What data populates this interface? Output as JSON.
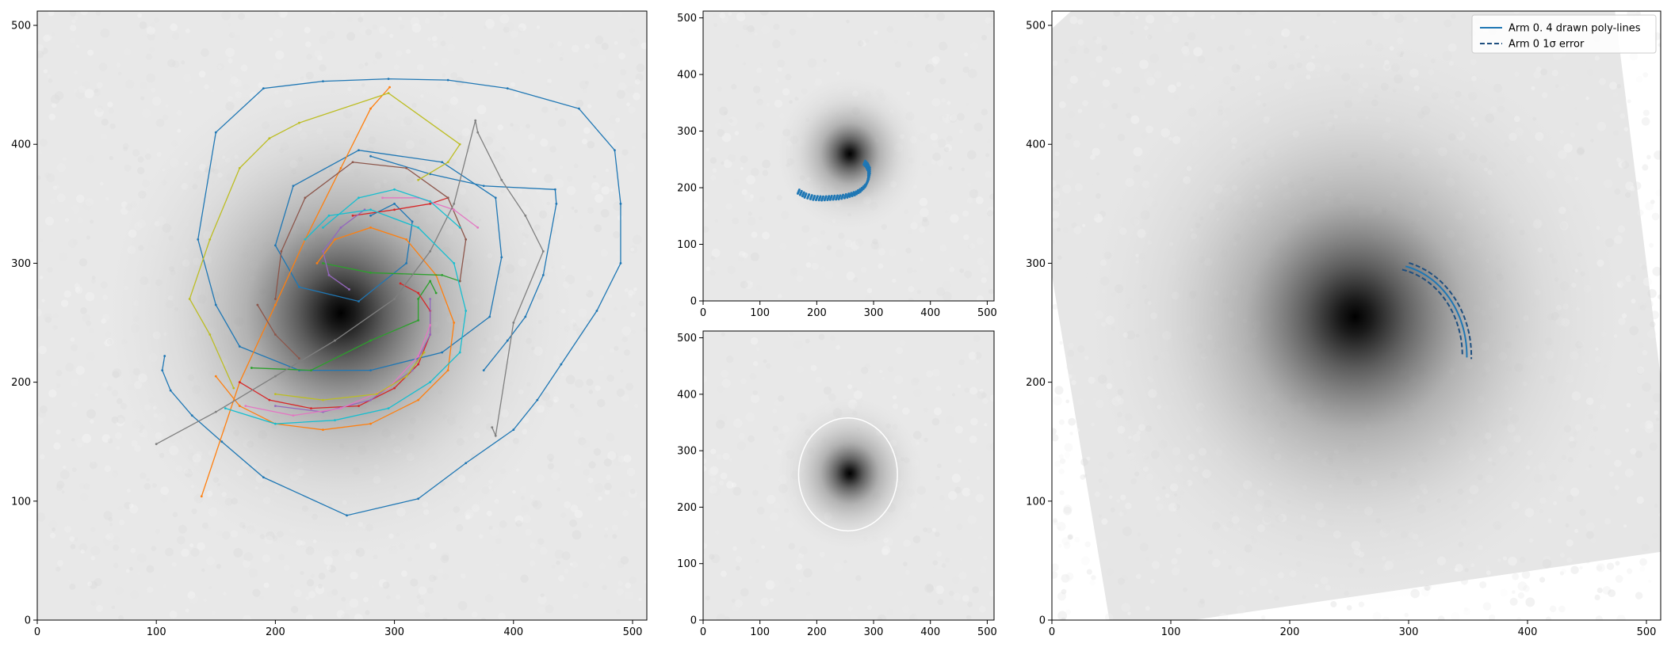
{
  "chart_data": [
    {
      "type": "scatter",
      "name": "drawn-arms-panel",
      "image": "galaxy (grayscale, sigmoid-stretched)",
      "xlim": [
        0,
        512
      ],
      "ylim": [
        0,
        512
      ],
      "xticks": [
        0,
        100,
        200,
        300,
        400,
        500
      ],
      "yticks": [
        0,
        100,
        200,
        300,
        400,
        500
      ],
      "grid": false,
      "galaxy_center": [
        255,
        258
      ],
      "series": [
        {
          "color": "#1f77b4",
          "points": [
            [
              107,
              222
            ],
            [
              105,
              210
            ],
            [
              112,
              193
            ],
            [
              130,
              172
            ],
            [
              155,
              150
            ],
            [
              190,
              120
            ],
            [
              260,
              88
            ],
            [
              320,
              102
            ],
            [
              360,
              132
            ],
            [
              400,
              160
            ],
            [
              420,
              185
            ],
            [
              440,
              215
            ],
            [
              470,
              260
            ],
            [
              490,
              300
            ],
            [
              490,
              350
            ],
            [
              485,
              395
            ],
            [
              455,
              430
            ],
            [
              395,
              447
            ],
            [
              345,
              454
            ],
            [
              295,
              455
            ],
            [
              240,
              453
            ],
            [
              190,
              447
            ],
            [
              150,
              410
            ],
            [
              135,
              320
            ],
            [
              150,
              265
            ],
            [
              170,
              230
            ],
            [
              220,
              210
            ],
            [
              280,
              210
            ],
            [
              340,
              225
            ],
            [
              380,
              255
            ],
            [
              390,
              305
            ],
            [
              385,
              355
            ],
            [
              340,
              385
            ],
            [
              270,
              395
            ],
            [
              215,
              365
            ],
            [
              200,
              315
            ],
            [
              220,
              280
            ],
            [
              270,
              268
            ],
            [
              310,
              300
            ],
            [
              315,
              335
            ],
            [
              300,
              350
            ],
            [
              280,
              340
            ]
          ]
        },
        {
          "color": "#1f77b4",
          "points": [
            [
              280,
              390
            ],
            [
              330,
              375
            ],
            [
              375,
              365
            ],
            [
              435,
              362
            ],
            [
              436,
              350
            ],
            [
              425,
              290
            ],
            [
              410,
              255
            ],
            [
              395,
              235
            ],
            [
              375,
              210
            ]
          ]
        },
        {
          "color": "#ff7f0e",
          "points": [
            [
              138,
              104
            ],
            [
              170,
              200
            ],
            [
              200,
              265
            ],
            [
              225,
              320
            ],
            [
              255,
              380
            ],
            [
              280,
              430
            ],
            [
              296,
              448
            ]
          ]
        },
        {
          "color": "#ff7f0e",
          "points": [
            [
              150,
              205
            ],
            [
              170,
              180
            ],
            [
              200,
              165
            ],
            [
              240,
              160
            ],
            [
              280,
              165
            ],
            [
              320,
              185
            ],
            [
              345,
              210
            ],
            [
              350,
              250
            ],
            [
              335,
              290
            ],
            [
              310,
              320
            ],
            [
              280,
              330
            ],
            [
              250,
              320
            ],
            [
              235,
              300
            ]
          ]
        },
        {
          "color": "#2ca02c",
          "points": [
            [
              180,
              212
            ],
            [
              230,
              210
            ],
            [
              280,
              235
            ],
            [
              320,
              252
            ],
            [
              320,
              270
            ],
            [
              330,
              285
            ],
            [
              335,
              275
            ]
          ]
        },
        {
          "color": "#2ca02c",
          "points": [
            [
              240,
              300
            ],
            [
              280,
              292
            ],
            [
              340,
              290
            ],
            [
              355,
              285
            ]
          ]
        },
        {
          "color": "#d62728",
          "points": [
            [
              170,
              200
            ],
            [
              195,
              185
            ],
            [
              230,
              178
            ],
            [
              270,
              180
            ],
            [
              300,
              195
            ],
            [
              320,
              215
            ],
            [
              330,
              240
            ],
            [
              330,
              260
            ],
            [
              320,
              275
            ],
            [
              305,
              283
            ]
          ]
        },
        {
          "color": "#d62728",
          "points": [
            [
              265,
              340
            ],
            [
              300,
              345
            ],
            [
              330,
              350
            ],
            [
              345,
              355
            ]
          ]
        },
        {
          "color": "#9467bd",
          "points": [
            [
              200,
              180
            ],
            [
              240,
              175
            ],
            [
              280,
              185
            ],
            [
              315,
              210
            ],
            [
              330,
              240
            ],
            [
              330,
              270
            ]
          ]
        },
        {
          "color": "#9467bd",
          "points": [
            [
              275,
              345
            ],
            [
              255,
              330
            ],
            [
              240,
              310
            ],
            [
              245,
              290
            ],
            [
              262,
              278
            ]
          ]
        },
        {
          "color": "#8c564b",
          "points": [
            [
              200,
              270
            ],
            [
              205,
              310
            ],
            [
              225,
              355
            ],
            [
              265,
              385
            ],
            [
              310,
              380
            ],
            [
              345,
              355
            ],
            [
              360,
              320
            ],
            [
              355,
              285
            ]
          ]
        },
        {
          "color": "#8c564b",
          "points": [
            [
              220,
              220
            ],
            [
              200,
              240
            ],
            [
              185,
              265
            ]
          ]
        },
        {
          "color": "#e377c2",
          "points": [
            [
              175,
              180
            ],
            [
              215,
              172
            ],
            [
              255,
              178
            ],
            [
              295,
              195
            ],
            [
              320,
              222
            ],
            [
              330,
              248
            ]
          ]
        },
        {
          "color": "#e377c2",
          "points": [
            [
              290,
              355
            ],
            [
              320,
              355
            ],
            [
              350,
              345
            ],
            [
              370,
              330
            ]
          ]
        },
        {
          "color": "#7f7f7f",
          "points": [
            [
              100,
              148
            ],
            [
              150,
              175
            ],
            [
              200,
              205
            ],
            [
              250,
              235
            ],
            [
              300,
              270
            ],
            [
              330,
              310
            ],
            [
              350,
              350
            ],
            [
              368,
              420
            ],
            [
              370,
              410
            ],
            [
              390,
              370
            ],
            [
              410,
              340
            ],
            [
              425,
              310
            ],
            [
              400,
              250
            ],
            [
              385,
              155
            ],
            [
              382,
              162
            ]
          ]
        },
        {
          "color": "#bcbd22",
          "points": [
            [
              165,
              195
            ],
            [
              145,
              240
            ],
            [
              128,
              270
            ],
            [
              145,
              320
            ],
            [
              170,
              380
            ],
            [
              195,
              405
            ],
            [
              220,
              418
            ],
            [
              295,
              443
            ],
            [
              355,
              400
            ],
            [
              345,
              385
            ],
            [
              320,
              370
            ]
          ]
        },
        {
          "color": "#bcbd22",
          "points": [
            [
              200,
              190
            ],
            [
              240,
              185
            ],
            [
              285,
              190
            ],
            [
              310,
              205
            ],
            [
              325,
              225
            ]
          ]
        },
        {
          "color": "#17becf",
          "points": [
            [
              158,
              178
            ],
            [
              200,
              165
            ],
            [
              250,
              168
            ],
            [
              295,
              178
            ],
            [
              330,
              200
            ],
            [
              355,
              225
            ],
            [
              360,
              260
            ],
            [
              350,
              300
            ],
            [
              320,
              330
            ],
            [
              280,
              345
            ],
            [
              245,
              340
            ],
            [
              225,
              320
            ]
          ]
        },
        {
          "color": "#17becf",
          "points": [
            [
              240,
              330
            ],
            [
              270,
              355
            ],
            [
              300,
              362
            ],
            [
              330,
              352
            ],
            [
              355,
              330
            ]
          ]
        }
      ]
    },
    {
      "type": "scatter",
      "name": "clustered-arm-points-panel",
      "xlim": [
        0,
        512
      ],
      "ylim": [
        0,
        512
      ],
      "xticks": [
        0,
        100,
        200,
        300,
        400,
        500
      ],
      "yticks": [
        0,
        100,
        200,
        300,
        400,
        500
      ],
      "grid": false,
      "galaxy_center": [
        258,
        260
      ],
      "series": [
        {
          "color": "#1f77b4",
          "points": [
            [
              168,
              193
            ],
            [
              180,
              186
            ],
            [
              195,
              182
            ],
            [
              210,
              181
            ],
            [
              225,
              182
            ],
            [
              240,
              183
            ],
            [
              255,
              186
            ],
            [
              268,
              190
            ],
            [
              278,
              196
            ],
            [
              286,
              204
            ],
            [
              290,
              212
            ],
            [
              292,
              222
            ],
            [
              292,
              232
            ],
            [
              288,
              240
            ],
            [
              282,
              246
            ]
          ]
        }
      ]
    },
    {
      "type": "scatter",
      "name": "ellipse-fit-panel",
      "xlim": [
        0,
        512
      ],
      "ylim": [
        0,
        512
      ],
      "xticks": [
        0,
        100,
        200,
        300,
        400,
        500
      ],
      "yticks": [
        0,
        100,
        200,
        300,
        400,
        500
      ],
      "grid": false,
      "galaxy_center": [
        258,
        260
      ],
      "ellipse": {
        "cx": 255,
        "cy": 258,
        "rx": 87,
        "ry": 100,
        "color": "#ffffff"
      }
    },
    {
      "type": "line",
      "name": "deprojected-panel",
      "xlim": [
        0,
        512
      ],
      "ylim": [
        0,
        512
      ],
      "xticks": [
        0,
        100,
        200,
        300,
        400,
        500
      ],
      "yticks": [
        0,
        100,
        200,
        300,
        400,
        500
      ],
      "grid": false,
      "legend": "top-right",
      "legend_entries": [
        {
          "label": "Arm 0. 4 drawn poly-lines",
          "style": "solid",
          "color": "#1f77b4"
        },
        {
          "label": "Arm 0 1σ error",
          "style": "dashed",
          "color": "#1f77b4"
        }
      ],
      "galaxy_center": [
        255,
        255
      ],
      "arm": {
        "cx": 255,
        "cy": 255,
        "theta_start_deg": 45,
        "theta_end_deg": -20,
        "r_start": 60,
        "r_end": 100,
        "error_offset": 4
      }
    }
  ]
}
